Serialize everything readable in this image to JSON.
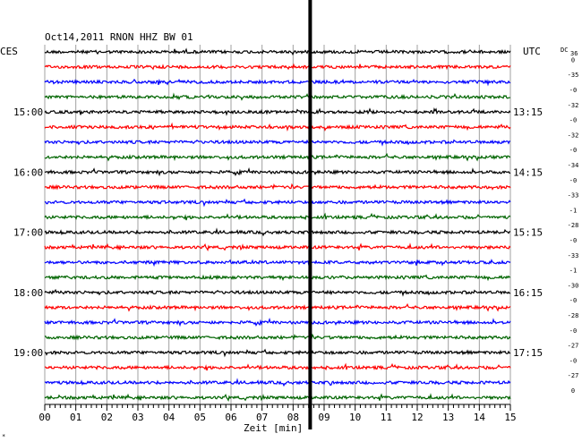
{
  "chart_data": {
    "type": "line",
    "title": "Oct14,2011   RNON HHZ BW 01",
    "left_timezone": "CES",
    "right_timezone": "UTC",
    "dc_header": "DC",
    "dc_header_value": "36",
    "xlabel": "Zeit [min]",
    "xlim": [
      0,
      15
    ],
    "x_ticks": [
      "00",
      "01",
      "02",
      "03",
      "04",
      "05",
      "06",
      "07",
      "08",
      "09",
      "10",
      "11",
      "12",
      "13",
      "14",
      "15"
    ],
    "row_minutes": 15,
    "row_count": 24,
    "left_hour_labels": [
      {
        "row": 4,
        "label": "15:00"
      },
      {
        "row": 8,
        "label": "16:00"
      },
      {
        "row": 12,
        "label": "17:00"
      },
      {
        "row": 16,
        "label": "18:00"
      },
      {
        "row": 20,
        "label": "19:00"
      }
    ],
    "right_hour_labels": [
      {
        "row": 4,
        "label": "13:15"
      },
      {
        "row": 8,
        "label": "14:15"
      },
      {
        "row": 12,
        "label": "15:15"
      },
      {
        "row": 16,
        "label": "16:15"
      },
      {
        "row": 20,
        "label": "17:15"
      }
    ],
    "dc_offsets": [
      "0",
      "-35",
      "-0",
      "-32",
      "-0",
      "-32",
      "-0",
      "-34",
      "-0",
      "-33",
      "-1",
      "-28",
      "-0",
      "-33",
      "-1",
      "-30",
      "-0",
      "-28",
      "-0",
      "-27",
      "-0",
      "-27",
      "0"
    ],
    "trace_colors": [
      "#000000",
      "#ff0000",
      "#0000ff",
      "#006400"
    ],
    "grid": true,
    "marker_minute": 8.55,
    "corner_mark": "*"
  }
}
